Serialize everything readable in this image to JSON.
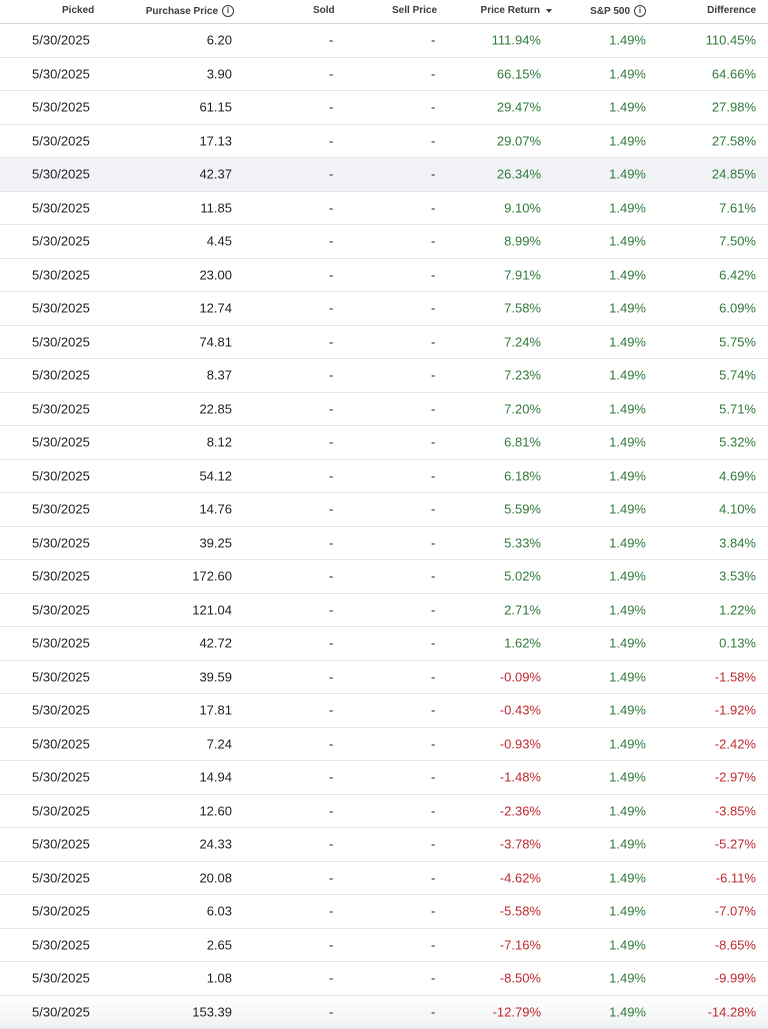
{
  "header": {
    "picked": "Picked",
    "purchase_price": "Purchase Price",
    "sold": "Sold",
    "sell_price": "Sell Price",
    "price_return": "Price Return",
    "sp500": "S&P 500",
    "difference": "Difference",
    "info_glyph": "i"
  },
  "colors": {
    "positive": "#2f7a3a",
    "negative": "#c0282d",
    "highlight_row": "#f1f3f6"
  },
  "rows": [
    {
      "picked": "5/30/2025",
      "purchase_price": "6.20",
      "sold": "-",
      "sell_price": "-",
      "price_return": "111.94%",
      "sp500": "1.49%",
      "difference": "110.45%"
    },
    {
      "picked": "5/30/2025",
      "purchase_price": "3.90",
      "sold": "-",
      "sell_price": "-",
      "price_return": "66.15%",
      "sp500": "1.49%",
      "difference": "64.66%"
    },
    {
      "picked": "5/30/2025",
      "purchase_price": "61.15",
      "sold": "-",
      "sell_price": "-",
      "price_return": "29.47%",
      "sp500": "1.49%",
      "difference": "27.98%"
    },
    {
      "picked": "5/30/2025",
      "purchase_price": "17.13",
      "sold": "-",
      "sell_price": "-",
      "price_return": "29.07%",
      "sp500": "1.49%",
      "difference": "27.58%"
    },
    {
      "picked": "5/30/2025",
      "purchase_price": "42.37",
      "sold": "-",
      "sell_price": "-",
      "price_return": "26.34%",
      "sp500": "1.49%",
      "difference": "24.85%"
    },
    {
      "picked": "5/30/2025",
      "purchase_price": "11.85",
      "sold": "-",
      "sell_price": "-",
      "price_return": "9.10%",
      "sp500": "1.49%",
      "difference": "7.61%"
    },
    {
      "picked": "5/30/2025",
      "purchase_price": "4.45",
      "sold": "-",
      "sell_price": "-",
      "price_return": "8.99%",
      "sp500": "1.49%",
      "difference": "7.50%"
    },
    {
      "picked": "5/30/2025",
      "purchase_price": "23.00",
      "sold": "-",
      "sell_price": "-",
      "price_return": "7.91%",
      "sp500": "1.49%",
      "difference": "6.42%"
    },
    {
      "picked": "5/30/2025",
      "purchase_price": "12.74",
      "sold": "-",
      "sell_price": "-",
      "price_return": "7.58%",
      "sp500": "1.49%",
      "difference": "6.09%"
    },
    {
      "picked": "5/30/2025",
      "purchase_price": "74.81",
      "sold": "-",
      "sell_price": "-",
      "price_return": "7.24%",
      "sp500": "1.49%",
      "difference": "5.75%"
    },
    {
      "picked": "5/30/2025",
      "purchase_price": "8.37",
      "sold": "-",
      "sell_price": "-",
      "price_return": "7.23%",
      "sp500": "1.49%",
      "difference": "5.74%"
    },
    {
      "picked": "5/30/2025",
      "purchase_price": "22.85",
      "sold": "-",
      "sell_price": "-",
      "price_return": "7.20%",
      "sp500": "1.49%",
      "difference": "5.71%"
    },
    {
      "picked": "5/30/2025",
      "purchase_price": "8.12",
      "sold": "-",
      "sell_price": "-",
      "price_return": "6.81%",
      "sp500": "1.49%",
      "difference": "5.32%"
    },
    {
      "picked": "5/30/2025",
      "purchase_price": "54.12",
      "sold": "-",
      "sell_price": "-",
      "price_return": "6.18%",
      "sp500": "1.49%",
      "difference": "4.69%"
    },
    {
      "picked": "5/30/2025",
      "purchase_price": "14.76",
      "sold": "-",
      "sell_price": "-",
      "price_return": "5.59%",
      "sp500": "1.49%",
      "difference": "4.10%"
    },
    {
      "picked": "5/30/2025",
      "purchase_price": "39.25",
      "sold": "-",
      "sell_price": "-",
      "price_return": "5.33%",
      "sp500": "1.49%",
      "difference": "3.84%"
    },
    {
      "picked": "5/30/2025",
      "purchase_price": "172.60",
      "sold": "-",
      "sell_price": "-",
      "price_return": "5.02%",
      "sp500": "1.49%",
      "difference": "3.53%"
    },
    {
      "picked": "5/30/2025",
      "purchase_price": "121.04",
      "sold": "-",
      "sell_price": "-",
      "price_return": "2.71%",
      "sp500": "1.49%",
      "difference": "1.22%"
    },
    {
      "picked": "5/30/2025",
      "purchase_price": "42.72",
      "sold": "-",
      "sell_price": "-",
      "price_return": "1.62%",
      "sp500": "1.49%",
      "difference": "0.13%"
    },
    {
      "picked": "5/30/2025",
      "purchase_price": "39.59",
      "sold": "-",
      "sell_price": "-",
      "price_return": "-0.09%",
      "sp500": "1.49%",
      "difference": "-1.58%"
    },
    {
      "picked": "5/30/2025",
      "purchase_price": "17.81",
      "sold": "-",
      "sell_price": "-",
      "price_return": "-0.43%",
      "sp500": "1.49%",
      "difference": "-1.92%"
    },
    {
      "picked": "5/30/2025",
      "purchase_price": "7.24",
      "sold": "-",
      "sell_price": "-",
      "price_return": "-0.93%",
      "sp500": "1.49%",
      "difference": "-2.42%"
    },
    {
      "picked": "5/30/2025",
      "purchase_price": "14.94",
      "sold": "-",
      "sell_price": "-",
      "price_return": "-1.48%",
      "sp500": "1.49%",
      "difference": "-2.97%"
    },
    {
      "picked": "5/30/2025",
      "purchase_price": "12.60",
      "sold": "-",
      "sell_price": "-",
      "price_return": "-2.36%",
      "sp500": "1.49%",
      "difference": "-3.85%"
    },
    {
      "picked": "5/30/2025",
      "purchase_price": "24.33",
      "sold": "-",
      "sell_price": "-",
      "price_return": "-3.78%",
      "sp500": "1.49%",
      "difference": "-5.27%"
    },
    {
      "picked": "5/30/2025",
      "purchase_price": "20.08",
      "sold": "-",
      "sell_price": "-",
      "price_return": "-4.62%",
      "sp500": "1.49%",
      "difference": "-6.11%"
    },
    {
      "picked": "5/30/2025",
      "purchase_price": "6.03",
      "sold": "-",
      "sell_price": "-",
      "price_return": "-5.58%",
      "sp500": "1.49%",
      "difference": "-7.07%"
    },
    {
      "picked": "5/30/2025",
      "purchase_price": "2.65",
      "sold": "-",
      "sell_price": "-",
      "price_return": "-7.16%",
      "sp500": "1.49%",
      "difference": "-8.65%"
    },
    {
      "picked": "5/30/2025",
      "purchase_price": "1.08",
      "sold": "-",
      "sell_price": "-",
      "price_return": "-8.50%",
      "sp500": "1.49%",
      "difference": "-9.99%"
    },
    {
      "picked": "5/30/2025",
      "purchase_price": "153.39",
      "sold": "-",
      "sell_price": "-",
      "price_return": "-12.79%",
      "sp500": "1.49%",
      "difference": "-14.28%"
    }
  ]
}
